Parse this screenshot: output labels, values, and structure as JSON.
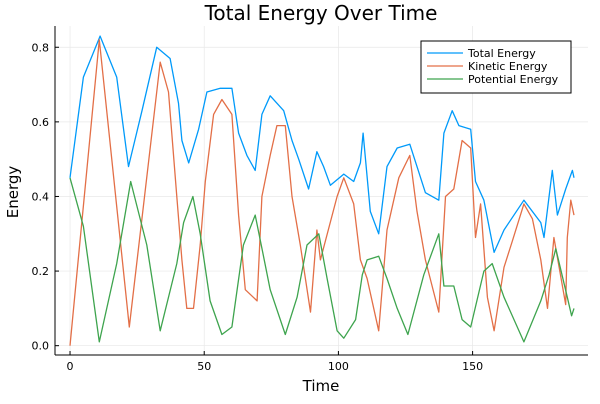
{
  "chart_data": {
    "type": "line",
    "title": "Total Energy Over Time",
    "xlabel": "Time",
    "ylabel": "Energy",
    "xlim": [
      -5.6,
      193
    ],
    "ylim": [
      -0.025,
      0.857
    ],
    "xticks": [
      0,
      50,
      100,
      150
    ],
    "xtick_labels": [
      "0",
      "50",
      "100",
      "150"
    ],
    "yticks": [
      0.0,
      0.2,
      0.4,
      0.6,
      0.8
    ],
    "ytick_labels": [
      "0.0",
      "0.2",
      "0.4",
      "0.6",
      "0.8"
    ],
    "grid": true,
    "legend_position": "top-right",
    "series": [
      {
        "name": "Total Energy",
        "color": "#009AFA",
        "x": [
          0,
          5,
          11.2,
          17.4,
          21.8,
          26.8,
          32.3,
          37.3,
          40.4,
          41.7,
          44.2,
          47.9,
          51,
          56,
          60.3,
          62.8,
          65.9,
          69,
          71.5,
          74.6,
          79.6,
          82.7,
          85.2,
          88.9,
          92,
          94.5,
          97,
          102,
          105.7,
          108.2,
          109.2,
          111.9,
          115,
          118.1,
          121.9,
          126.6,
          129.3,
          132.4,
          137.4,
          139.3,
          142.4,
          144.9,
          149.3,
          151.1,
          154.2,
          158,
          161.7,
          169.1,
          175.4,
          176.6,
          179.7,
          181.6,
          184.7,
          187.2,
          187.8
        ],
        "y": [
          0.45,
          0.72,
          0.83,
          0.72,
          0.48,
          0.63,
          0.8,
          0.77,
          0.65,
          0.55,
          0.49,
          0.58,
          0.68,
          0.69,
          0.69,
          0.57,
          0.51,
          0.47,
          0.62,
          0.67,
          0.63,
          0.55,
          0.5,
          0.42,
          0.52,
          0.48,
          0.43,
          0.46,
          0.44,
          0.49,
          0.57,
          0.36,
          0.3,
          0.48,
          0.53,
          0.54,
          0.48,
          0.41,
          0.39,
          0.57,
          0.63,
          0.59,
          0.58,
          0.44,
          0.39,
          0.25,
          0.31,
          0.39,
          0.33,
          0.29,
          0.47,
          0.35,
          0.42,
          0.47,
          0.45
        ]
      },
      {
        "name": "Kinetic Energy",
        "color": "#E36F47",
        "x": [
          0,
          10.9,
          22.1,
          33.6,
          36.7,
          39.8,
          41.7,
          43.5,
          46,
          48.5,
          50.4,
          53.5,
          56.6,
          60.3,
          62.8,
          65.3,
          69.7,
          71.5,
          74.6,
          77.1,
          80.2,
          82.7,
          85.8,
          89.6,
          92,
          93.3,
          99.5,
          102,
          105.7,
          108.2,
          110.7,
          115,
          118.1,
          122.5,
          126.6,
          129.3,
          132.4,
          137.4,
          139.9,
          143,
          146.1,
          149.3,
          151.1,
          153,
          155.5,
          158,
          161.7,
          164.8,
          169.1,
          172.3,
          175.4,
          177.9,
          180.3,
          184.7,
          185.3,
          186.6,
          187.8
        ],
        "y": [
          0.0,
          0.82,
          0.05,
          0.76,
          0.68,
          0.4,
          0.23,
          0.1,
          0.1,
          0.27,
          0.44,
          0.62,
          0.66,
          0.62,
          0.35,
          0.15,
          0.12,
          0.4,
          0.51,
          0.59,
          0.59,
          0.4,
          0.27,
          0.09,
          0.31,
          0.23,
          0.4,
          0.45,
          0.38,
          0.23,
          0.18,
          0.04,
          0.31,
          0.45,
          0.51,
          0.36,
          0.23,
          0.09,
          0.4,
          0.42,
          0.55,
          0.53,
          0.29,
          0.38,
          0.13,
          0.04,
          0.21,
          0.28,
          0.38,
          0.34,
          0.23,
          0.1,
          0.29,
          0.11,
          0.29,
          0.39,
          0.35
        ]
      },
      {
        "name": "Potential Energy",
        "color": "#3EA44E",
        "x": [
          0,
          5,
          10.9,
          17.4,
          22.6,
          28.6,
          33.6,
          39.8,
          42.3,
          45.8,
          48.5,
          52.2,
          56.6,
          60.3,
          64.6,
          69,
          72.1,
          74.6,
          80.2,
          84.6,
          88.3,
          92.7,
          95.8,
          99.5,
          102,
          106.4,
          108.9,
          110.7,
          115,
          118.1,
          121.9,
          125.9,
          131.8,
          137.4,
          139.3,
          143,
          146.1,
          149.3,
          154.2,
          157.3,
          161.7,
          169.1,
          175.4,
          178.5,
          181,
          185.3,
          186.9,
          187.8
        ],
        "y": [
          0.45,
          0.32,
          0.01,
          0.22,
          0.44,
          0.27,
          0.04,
          0.22,
          0.33,
          0.4,
          0.3,
          0.12,
          0.03,
          0.05,
          0.27,
          0.35,
          0.24,
          0.15,
          0.03,
          0.13,
          0.27,
          0.3,
          0.18,
          0.04,
          0.02,
          0.07,
          0.19,
          0.23,
          0.24,
          0.18,
          0.1,
          0.03,
          0.19,
          0.3,
          0.16,
          0.16,
          0.07,
          0.05,
          0.2,
          0.22,
          0.13,
          0.01,
          0.12,
          0.19,
          0.26,
          0.13,
          0.08,
          0.1
        ]
      }
    ]
  }
}
